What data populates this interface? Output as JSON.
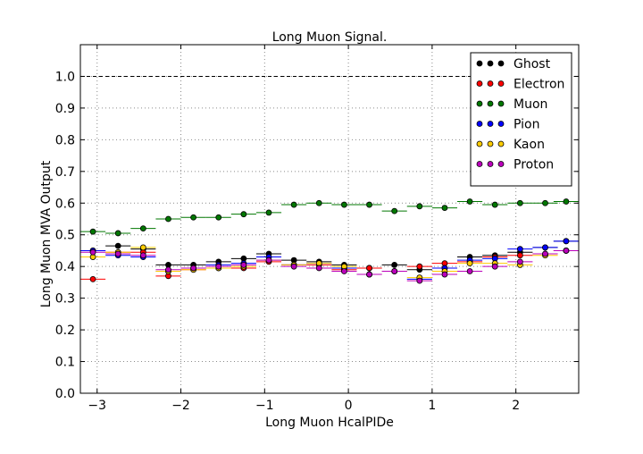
{
  "chart_data": {
    "type": "scatter",
    "title": "Long Muon Signal.",
    "xlabel": "Long Muon HcalPIDe",
    "ylabel": "Long Muon MVA Output",
    "xlim": [
      -3.2,
      2.75
    ],
    "ylim": [
      0.0,
      1.1
    ],
    "xticks": [
      -3,
      -2,
      -1,
      0,
      1,
      2
    ],
    "xtick_labels": [
      "−3",
      "−2",
      "−1",
      "0",
      "1",
      "2"
    ],
    "yticks": [
      0.0,
      0.1,
      0.2,
      0.3,
      0.4,
      0.5,
      0.6,
      0.7,
      0.8,
      0.9,
      1.0
    ],
    "ytick_labels": [
      "0.0",
      "0.1",
      "0.2",
      "0.3",
      "0.4",
      "0.5",
      "0.6",
      "0.7",
      "0.8",
      "0.9",
      "1.0"
    ],
    "grid": true,
    "legend_position": "top-right",
    "reference_line": 1.0,
    "bin_half_width": 0.15,
    "x": [
      -3.05,
      -2.75,
      -2.45,
      -2.15,
      -1.85,
      -1.55,
      -1.25,
      -0.95,
      -0.65,
      -0.35,
      -0.05,
      0.25,
      0.55,
      0.85,
      1.15,
      1.45,
      1.75,
      2.05,
      2.35,
      2.6
    ],
    "series": [
      {
        "name": "Ghost",
        "color": "#000000",
        "values": [
          0.45,
          0.465,
          0.455,
          0.405,
          0.405,
          0.415,
          0.425,
          0.44,
          0.42,
          0.415,
          0.405,
          0.395,
          0.405,
          0.39,
          0.395,
          0.43,
          0.435,
          0.445,
          0.46,
          0.48
        ]
      },
      {
        "name": "Electron",
        "color": "#ff0000",
        "values": [
          0.36,
          0.445,
          0.445,
          0.37,
          0.39,
          0.395,
          0.395,
          0.415,
          0.405,
          0.405,
          0.39,
          0.395,
          0.385,
          0.4,
          0.41,
          0.415,
          0.43,
          0.435,
          0.44,
          0.45
        ]
      },
      {
        "name": "Muon",
        "color": "#007700",
        "values": [
          0.51,
          0.505,
          0.52,
          0.55,
          0.555,
          0.555,
          0.565,
          0.57,
          0.595,
          0.6,
          0.595,
          0.595,
          0.575,
          0.59,
          0.585,
          0.605,
          0.595,
          0.6,
          0.6,
          0.605
        ]
      },
      {
        "name": "Pion",
        "color": "#0000ff",
        "values": [
          0.45,
          0.435,
          0.43,
          0.385,
          0.395,
          0.405,
          0.41,
          0.43,
          0.405,
          0.41,
          0.395,
          0.375,
          0.385,
          0.36,
          0.395,
          0.42,
          0.425,
          0.455,
          0.46,
          0.48
        ]
      },
      {
        "name": "Kaon",
        "color": "#ffcc00",
        "values": [
          0.43,
          0.445,
          0.46,
          0.385,
          0.39,
          0.395,
          0.4,
          0.42,
          0.405,
          0.41,
          0.4,
          0.375,
          0.385,
          0.365,
          0.385,
          0.41,
          0.41,
          0.405,
          0.435,
          0.45
        ]
      },
      {
        "name": "Proton",
        "color": "#bb00bb",
        "values": [
          0.445,
          0.44,
          0.435,
          0.39,
          0.395,
          0.4,
          0.405,
          0.42,
          0.4,
          0.395,
          0.385,
          0.375,
          0.385,
          0.355,
          0.375,
          0.385,
          0.4,
          0.415,
          0.44,
          0.45
        ]
      }
    ]
  }
}
